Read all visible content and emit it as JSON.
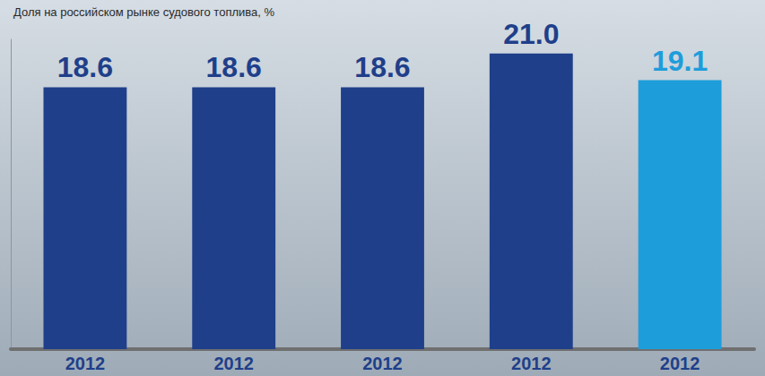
{
  "chart_data": {
    "type": "bar",
    "title": "Доля на российском рынке судового топлива, %",
    "categories": [
      "2012",
      "2012",
      "2012",
      "2012",
      "2012"
    ],
    "values": [
      18.6,
      18.6,
      18.6,
      21.0,
      19.1
    ],
    "value_labels": [
      "18.6",
      "18.6",
      "18.6",
      "21.0",
      "19.1"
    ],
    "colors": [
      "#1f3f8a",
      "#1f3f8a",
      "#1f3f8a",
      "#1f3f8a",
      "#1e9ddb"
    ],
    "ylim": [
      0,
      22
    ],
    "grid": false,
    "data_labels": true,
    "tick_labels": "x"
  }
}
